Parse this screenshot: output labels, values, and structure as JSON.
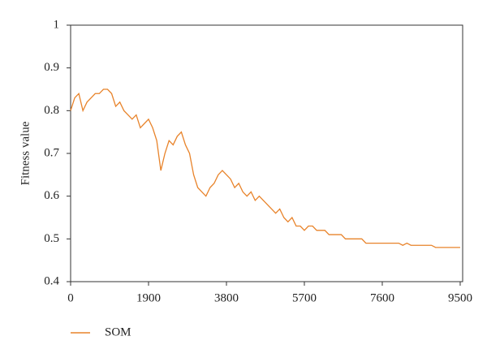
{
  "chart_data": {
    "type": "line",
    "y_label": "Fitness value",
    "x": [
      0,
      100,
      200,
      300,
      400,
      500,
      600,
      700,
      800,
      900,
      1000,
      1100,
      1200,
      1300,
      1400,
      1500,
      1600,
      1700,
      1800,
      1900,
      2000,
      2100,
      2200,
      2300,
      2400,
      2500,
      2600,
      2700,
      2800,
      2900,
      3000,
      3100,
      3200,
      3300,
      3400,
      3500,
      3600,
      3700,
      3800,
      3900,
      4000,
      4100,
      4200,
      4300,
      4400,
      4500,
      4600,
      4700,
      4800,
      4900,
      5000,
      5100,
      5200,
      5300,
      5400,
      5500,
      5600,
      5700,
      5800,
      5900,
      6000,
      6100,
      6200,
      6300,
      6400,
      6500,
      6600,
      6700,
      6800,
      6900,
      7000,
      7100,
      7200,
      7300,
      7400,
      7500,
      7600,
      7700,
      7800,
      7900,
      8000,
      8100,
      8200,
      8300,
      8400,
      8500,
      8600,
      8700,
      8800,
      8900,
      9000,
      9100,
      9200,
      9300,
      9400,
      9500
    ],
    "series": [
      {
        "name": "SOM",
        "color": "#e8832a",
        "values": [
          0.8,
          0.83,
          0.84,
          0.8,
          0.82,
          0.83,
          0.84,
          0.84,
          0.85,
          0.85,
          0.84,
          0.81,
          0.82,
          0.8,
          0.79,
          0.78,
          0.79,
          0.76,
          0.77,
          0.78,
          0.76,
          0.73,
          0.66,
          0.7,
          0.73,
          0.72,
          0.74,
          0.75,
          0.72,
          0.7,
          0.65,
          0.62,
          0.61,
          0.6,
          0.62,
          0.63,
          0.65,
          0.66,
          0.65,
          0.64,
          0.62,
          0.63,
          0.61,
          0.6,
          0.61,
          0.59,
          0.6,
          0.59,
          0.58,
          0.57,
          0.56,
          0.57,
          0.55,
          0.54,
          0.55,
          0.53,
          0.53,
          0.52,
          0.53,
          0.53,
          0.52,
          0.52,
          0.52,
          0.51,
          0.51,
          0.51,
          0.51,
          0.5,
          0.5,
          0.5,
          0.5,
          0.5,
          0.49,
          0.49,
          0.49,
          0.49,
          0.49,
          0.49,
          0.49,
          0.49,
          0.49,
          0.485,
          0.49,
          0.485,
          0.485,
          0.485,
          0.485,
          0.485,
          0.485,
          0.48,
          0.48,
          0.48,
          0.48,
          0.48,
          0.48,
          0.48
        ]
      }
    ],
    "xlim": [
      0,
      9560
    ],
    "xticks": [
      0,
      1900,
      3800,
      5700,
      7600,
      9500
    ],
    "ylim": [
      0.4,
      1
    ],
    "yticks": [
      0.4,
      0.5,
      0.6,
      0.7,
      0.8,
      0.9,
      1
    ],
    "legend": "bottom-left"
  }
}
